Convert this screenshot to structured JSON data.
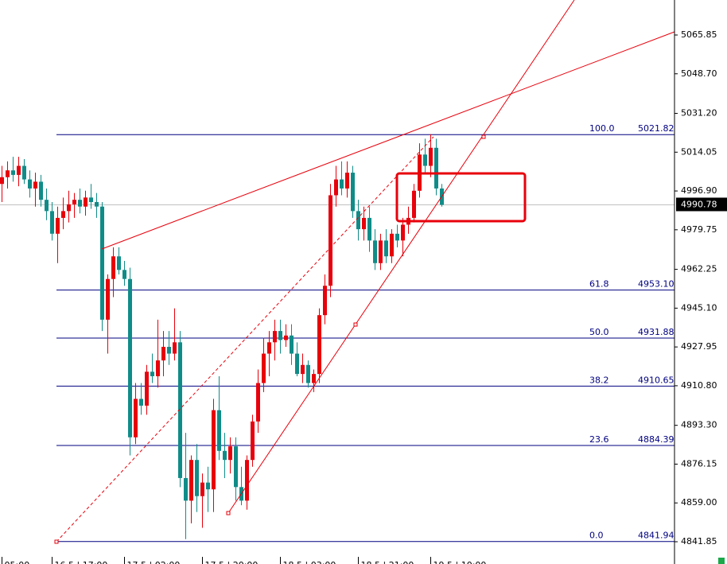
{
  "chart_data": {
    "type": "candlestick",
    "categories": [
      "05:00",
      null,
      null,
      null,
      null,
      null,
      null,
      null,
      null,
      "16.5 | 17:00",
      null,
      null,
      null,
      null,
      null,
      null,
      null,
      null,
      null,
      null,
      null,
      null,
      "17.5 | 02:00",
      null,
      null,
      null,
      null,
      null,
      null,
      null,
      null,
      null,
      null,
      null,
      null,
      null,
      "17.5 | 20:00",
      null,
      null,
      null,
      null,
      null,
      null,
      null,
      null,
      null,
      null,
      null,
      null,
      null,
      "18.5 | 03:00",
      null,
      null,
      null,
      null,
      null,
      null,
      null,
      null,
      null,
      null,
      null,
      null,
      null,
      "18.5 | 21:00",
      null,
      null,
      null,
      null,
      null,
      null,
      null,
      null,
      null,
      null,
      null,
      null,
      "19.5 | 10:00",
      null,
      null
    ],
    "open": [
      5000,
      5003,
      5006,
      5004,
      5008,
      5002,
      4998,
      5001,
      4993,
      4988,
      4978,
      4985,
      4988,
      4991,
      4993,
      4990,
      4994,
      4992,
      4990,
      4940,
      4958,
      4968,
      4962,
      4958,
      4888,
      4905,
      4902,
      4917,
      4915,
      4922,
      4928,
      4925,
      4930,
      4870,
      4860,
      4878,
      4862,
      4868,
      4865,
      4900,
      4882,
      4878,
      4884,
      4866,
      4860,
      4878,
      4895,
      4912,
      4925,
      4930,
      4935,
      4931,
      4933,
      4925,
      4916,
      4920,
      4912,
      4916,
      4942,
      4955,
      4995,
      5002,
      4998,
      5005,
      4988,
      4980,
      4985,
      4975,
      4965,
      4975,
      4968,
      4978,
      4975,
      4982,
      4985,
      4997,
      5013,
      5008,
      5016,
      4998
    ],
    "high": [
      5008,
      5010,
      5012,
      5012,
      5011,
      5006,
      5005,
      5004,
      4998,
      4992,
      4990,
      4994,
      4997,
      4996,
      4998,
      4997,
      5000,
      4996,
      4992,
      4960,
      4972,
      4972,
      4966,
      4963,
      4912,
      4912,
      4920,
      4925,
      4940,
      4935,
      4935,
      4945,
      4935,
      4890,
      4880,
      4885,
      4872,
      4875,
      4905,
      4915,
      4890,
      4888,
      4888,
      4875,
      4880,
      4898,
      4918,
      4932,
      4935,
      4940,
      4940,
      4938,
      4938,
      4930,
      4925,
      4922,
      4918,
      4945,
      4960,
      5000,
      5008,
      5010,
      5010,
      5008,
      4993,
      4990,
      4990,
      4980,
      4978,
      4980,
      4980,
      4982,
      4985,
      4990,
      5000,
      5018,
      5020,
      5022,
      5020,
      5000
    ],
    "low": [
      4992,
      4998,
      5001,
      4999,
      5000,
      4994,
      4990,
      4990,
      4984,
      4975,
      4965,
      4980,
      4983,
      4985,
      4987,
      4986,
      4989,
      4985,
      4935,
      4925,
      4950,
      4960,
      4955,
      4880,
      4885,
      4898,
      4898,
      4912,
      4910,
      4915,
      4920,
      4922,
      4866,
      4843,
      4850,
      4855,
      4848,
      4855,
      4855,
      4878,
      4870,
      4872,
      4860,
      4858,
      4856,
      4875,
      4890,
      4908,
      4915,
      4922,
      4925,
      4928,
      4920,
      4915,
      4912,
      4910,
      4908,
      4912,
      4938,
      4950,
      4990,
      4995,
      4994,
      4985,
      4975,
      4975,
      4970,
      4962,
      4962,
      4965,
      4965,
      4972,
      4968,
      4978,
      4983,
      4994,
      5005,
      5003,
      4995,
      4990
    ],
    "close": [
      5003,
      5006,
      5004,
      5008,
      5002,
      4998,
      5001,
      4993,
      4988,
      4978,
      4985,
      4988,
      4991,
      4993,
      4990,
      4994,
      4992,
      4990,
      4940,
      4958,
      4968,
      4962,
      4958,
      4888,
      4905,
      4902,
      4917,
      4915,
      4922,
      4928,
      4925,
      4930,
      4870,
      4860,
      4878,
      4862,
      4868,
      4865,
      4900,
      4882,
      4878,
      4884,
      4866,
      4860,
      4878,
      4895,
      4912,
      4925,
      4930,
      4935,
      4931,
      4933,
      4925,
      4916,
      4920,
      4912,
      4916,
      4942,
      4955,
      4995,
      5002,
      4998,
      5005,
      4988,
      4980,
      4985,
      4975,
      4965,
      4975,
      4968,
      4978,
      4975,
      4982,
      4985,
      4997,
      5013,
      5008,
      5016,
      4998,
      4990.78
    ],
    "up_color": "#e8000b",
    "down_color": "#108c88",
    "ylim": [
      4832.0,
      5081.32
    ],
    "yticks": [
      {
        "value": 5065.85,
        "label": "5065.85"
      },
      {
        "value": 5048.7,
        "label": "5048.70"
      },
      {
        "value": 5031.2,
        "label": "5031.20"
      },
      {
        "value": 5014.05,
        "label": "5014.05"
      },
      {
        "value": 4996.9,
        "label": "4996.90"
      },
      {
        "value": 4979.75,
        "label": "4979.75"
      },
      {
        "value": 4962.25,
        "label": "4962.25"
      },
      {
        "value": 4945.1,
        "label": "4945.10"
      },
      {
        "value": 4927.95,
        "label": "4927.95"
      },
      {
        "value": 4910.8,
        "label": "4910.80"
      },
      {
        "value": 4893.3,
        "label": "4893.30"
      },
      {
        "value": 4876.15,
        "label": "4876.15"
      },
      {
        "value": 4859,
        "label": "4859.00"
      },
      {
        "value": 4841.85,
        "label": "4841.85"
      }
    ],
    "last_price": 4990.78,
    "fib_levels": [
      {
        "level": "100.0",
        "price": 5021.82
      },
      {
        "level": "61.8",
        "price": {
          "value": 4953.1,
          "label": "4953.10"
        }
      },
      {
        "level": "50.0",
        "price": 4931.88
      },
      {
        "level": "38.2",
        "price": 4910.65
      },
      {
        "level": "23.6",
        "price": 4884.39
      },
      {
        "level": "0.0",
        "price": 4841.94
      }
    ],
    "fib_color": "#000080"
  }
}
